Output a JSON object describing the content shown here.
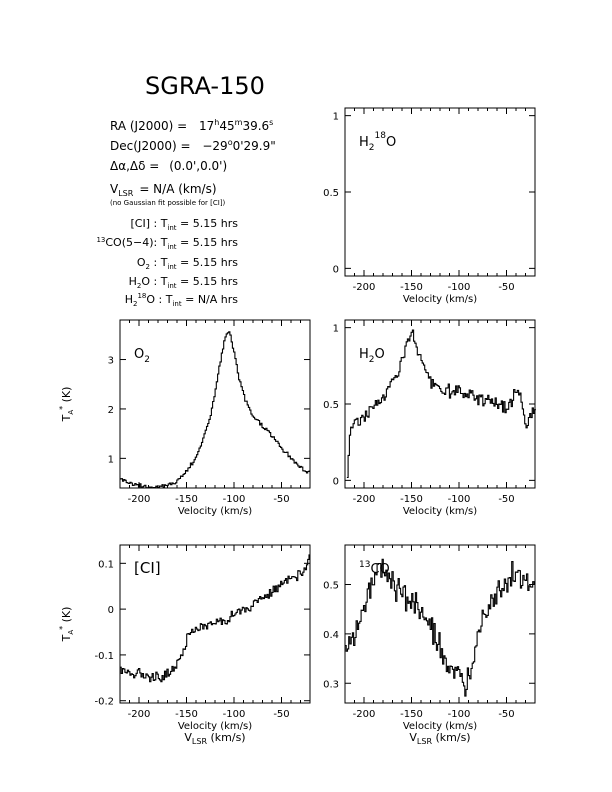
{
  "header": {
    "title": "SGRA-150",
    "ra_label": "RA (J2000) =",
    "ra_h": "17",
    "ra_m": "45",
    "ra_s": "39.6",
    "dec_label": "Dec(J2000) =",
    "dec_deg": "−29",
    "dec_min": "0'29.9\"",
    "offset_label": "Δα,Δδ =",
    "offset_value": "(0.0',0.0')",
    "vlsr_value": "= N/A  (km/s)",
    "vlsr_note": "(no Gaussian fit possible for [CI])",
    "integrations": [
      {
        "line": "[CI] :",
        "value": "5.15 hrs"
      },
      {
        "line": "13CO(5−4):",
        "value": "5.15 hrs"
      },
      {
        "line": "O2 :",
        "value": "5.15 hrs"
      },
      {
        "line": "H2O :",
        "value": "5.15 hrs"
      },
      {
        "line": "H218O :",
        "value": "N/A hrs"
      }
    ]
  },
  "chart_data": [
    {
      "id": "h218o",
      "type": "line",
      "label": "H2 18O",
      "xlabel": "Velocity (km/s)",
      "ylabel": "",
      "xlim": [
        -220,
        -20
      ],
      "ylim": [
        -0.05,
        1.05
      ],
      "x_ticks": [
        -200,
        -150,
        -100,
        -50
      ],
      "y_ticks": [
        0,
        0.5,
        1
      ],
      "x": [],
      "y": []
    },
    {
      "id": "o2",
      "type": "line",
      "label": "O2",
      "xlabel": "Velocity (km/s)",
      "ylabel": "TA* (K)",
      "xlim": [
        -220,
        -20
      ],
      "ylim": [
        0.4,
        3.8
      ],
      "x_ticks": [
        -200,
        -150,
        -100,
        -50
      ],
      "y_ticks": [
        1,
        2,
        3
      ],
      "x": [
        -220,
        -210,
        -200,
        -190,
        -180,
        -170,
        -160,
        -150,
        -140,
        -130,
        -125,
        -120,
        -115,
        -110,
        -105,
        -100,
        -95,
        -90,
        -85,
        -80,
        -70,
        -60,
        -50,
        -40,
        -30,
        -20
      ],
      "y": [
        0.6,
        0.5,
        0.45,
        0.42,
        0.42,
        0.45,
        0.55,
        0.75,
        1.05,
        1.55,
        1.9,
        2.4,
        2.95,
        3.45,
        3.55,
        3.1,
        2.6,
        2.25,
        2.0,
        1.85,
        1.65,
        1.45,
        1.2,
        1.0,
        0.8,
        0.72
      ]
    },
    {
      "id": "h2o",
      "type": "line",
      "label": "H2O",
      "xlabel": "Velocity (km/s)",
      "ylabel": "",
      "xlim": [
        -220,
        -20
      ],
      "ylim": [
        -0.05,
        1.05
      ],
      "x_ticks": [
        -200,
        -150,
        -100,
        -50
      ],
      "y_ticks": [
        0,
        0.5,
        1
      ],
      "x": [
        -218,
        -215,
        -210,
        -200,
        -190,
        -180,
        -170,
        -160,
        -155,
        -150,
        -145,
        -140,
        -135,
        -130,
        -125,
        -120,
        -110,
        -100,
        -90,
        -80,
        -70,
        -60,
        -55,
        -50,
        -46,
        -42,
        -38,
        -34,
        -30,
        -25,
        -20
      ],
      "y": [
        0.02,
        0.35,
        0.38,
        0.42,
        0.48,
        0.55,
        0.65,
        0.8,
        0.9,
        0.96,
        0.88,
        0.78,
        0.7,
        0.64,
        0.61,
        0.6,
        0.58,
        0.57,
        0.56,
        0.54,
        0.53,
        0.51,
        0.48,
        0.46,
        0.5,
        0.58,
        0.62,
        0.5,
        0.38,
        0.42,
        0.45
      ]
    },
    {
      "id": "ci",
      "type": "line",
      "label": "[CI]",
      "xlabel": "Velocity (km/s)",
      "ylabel": "TA* (K)",
      "xlim": [
        -220,
        -20
      ],
      "ylim": [
        -0.205,
        0.14
      ],
      "x_ticks": [
        -200,
        -150,
        -100,
        -50
      ],
      "y_ticks": [
        -0.2,
        -0.1,
        0,
        0.1
      ],
      "x": [
        -220,
        -210,
        -200,
        -190,
        -180,
        -170,
        -160,
        -155,
        -150,
        -145,
        -140,
        -130,
        -120,
        -110,
        -100,
        -90,
        -80,
        -70,
        -60,
        -50,
        -40,
        -30,
        -25,
        -20
      ],
      "y": [
        -0.13,
        -0.14,
        -0.14,
        -0.145,
        -0.15,
        -0.14,
        -0.12,
        -0.1,
        -0.06,
        -0.05,
        -0.045,
        -0.035,
        -0.03,
        -0.025,
        -0.01,
        -0.005,
        0.01,
        0.025,
        0.04,
        0.055,
        0.065,
        0.075,
        0.085,
        0.13
      ]
    },
    {
      "id": "co",
      "type": "line",
      "label": "13CO",
      "xlabel": "Velocity (km/s)",
      "ylabel": "",
      "xlim": [
        -220,
        -20
      ],
      "ylim": [
        0.26,
        0.58
      ],
      "x_ticks": [
        -200,
        -150,
        -100,
        -50
      ],
      "y_ticks": [
        0.3,
        0.4,
        0.5
      ],
      "x": [
        -220,
        -210,
        -200,
        -190,
        -180,
        -170,
        -160,
        -150,
        -140,
        -130,
        -120,
        -110,
        -100,
        -95,
        -90,
        -85,
        -80,
        -70,
        -60,
        -50,
        -40,
        -30,
        -20
      ],
      "y": [
        0.36,
        0.4,
        0.47,
        0.51,
        0.54,
        0.5,
        0.48,
        0.47,
        0.44,
        0.41,
        0.37,
        0.33,
        0.3,
        0.29,
        0.31,
        0.36,
        0.42,
        0.46,
        0.49,
        0.51,
        0.52,
        0.5,
        0.49
      ]
    }
  ],
  "labels": {
    "vlsr_axis": "(km/s)"
  }
}
